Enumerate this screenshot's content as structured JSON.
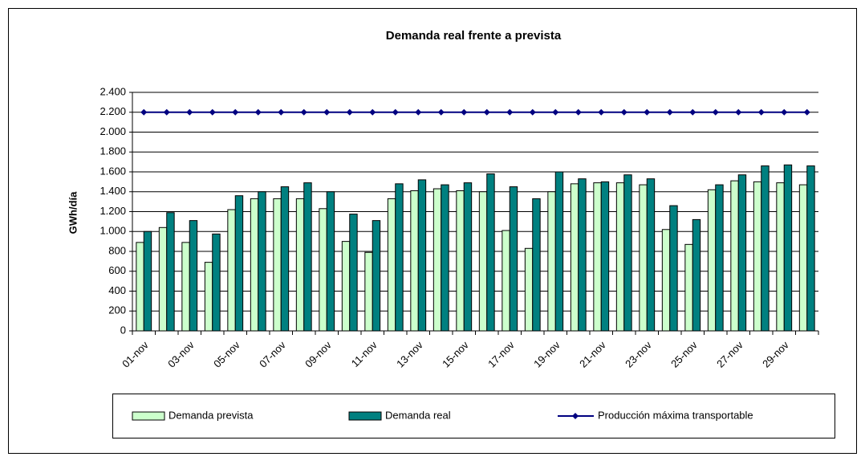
{
  "chart_data": {
    "type": "bar",
    "title": "Demanda real frente a prevista",
    "y_label": "GWh/día",
    "categories": [
      "01-nov",
      null,
      "03-nov",
      null,
      "05-nov",
      null,
      "07-nov",
      null,
      "09-nov",
      null,
      "11-nov",
      null,
      "13-nov",
      null,
      "15-nov",
      null,
      "17-nov",
      null,
      "19-nov",
      null,
      "21-nov",
      null,
      "23-nov",
      null,
      "25-nov",
      null,
      "27-nov",
      null,
      "29-nov",
      null
    ],
    "series": [
      {
        "name": "Demanda prevista",
        "color": "#ccffcc",
        "values": [
          890,
          1040,
          890,
          690,
          1220,
          1330,
          1330,
          1330,
          1230,
          900,
          790,
          1330,
          1410,
          1430,
          1410,
          1400,
          1010,
          830,
          1400,
          1480,
          1490,
          1490,
          1470,
          1020,
          870,
          1420,
          1510,
          1500,
          1490,
          1470
        ]
      },
      {
        "name": "Demanda real",
        "color": "#008080",
        "values": [
          1000,
          1190,
          1110,
          975,
          1360,
          1400,
          1450,
          1490,
          1400,
          1175,
          1110,
          1480,
          1520,
          1470,
          1490,
          1580,
          1450,
          1330,
          1600,
          1530,
          1500,
          1570,
          1530,
          1260,
          1120,
          1470,
          1570,
          1660,
          1670,
          1660
        ]
      },
      {
        "name": "Producción máxima transportable",
        "color": "#000080",
        "type": "line",
        "values": [
          2200,
          2200,
          2200,
          2200,
          2200,
          2200,
          2200,
          2200,
          2200,
          2200,
          2200,
          2200,
          2200,
          2200,
          2200,
          2200,
          2200,
          2200,
          2200,
          2200,
          2200,
          2200,
          2200,
          2200,
          2200,
          2200,
          2200,
          2200,
          2200,
          2200
        ]
      }
    ],
    "ylim": [
      0,
      2400
    ],
    "yticks": [
      0,
      200,
      400,
      600,
      800,
      {
        "value": 1000,
        "label": "1.000"
      },
      {
        "value": 1200,
        "label": "1.200"
      },
      {
        "value": 1400,
        "label": "1.400"
      },
      {
        "value": 1600,
        "label": "1.600"
      },
      {
        "value": 1800,
        "label": "1.800"
      },
      {
        "value": 2000,
        "label": "2.000"
      },
      {
        "value": 2200,
        "label": "2.200"
      },
      {
        "value": 2400,
        "label": "2.400"
      }
    ],
    "grid": true,
    "legend": "bottom"
  }
}
